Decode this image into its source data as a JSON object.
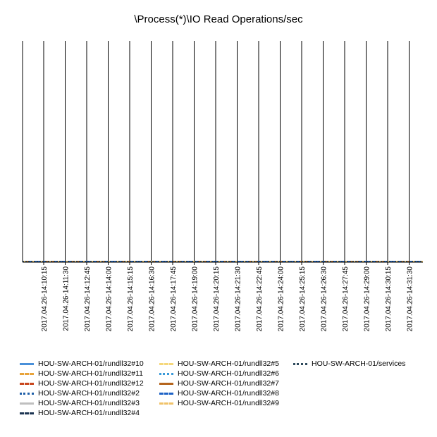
{
  "chart_data": {
    "type": "line",
    "title": "\\Process(*)\\IO Read Operations/sec",
    "xlabel": "",
    "ylabel": "",
    "grid": "vertical",
    "legend_position": "bottom",
    "x": [
      "2017.04.26-14:10:15",
      "2017.04.26-14:11:30",
      "2017.04.26-14:12:45",
      "2017.04.26-14:14:00",
      "2017.04.26-14:15:15",
      "2017.04.26-14:16:30",
      "2017.04.26-14:17:45",
      "2017.04.26-14:19:00",
      "2017.04.26-14:20:15",
      "2017.04.26-14:21:30",
      "2017.04.26-14:22:45",
      "2017.04.26-14:24:00",
      "2017.04.26-14:25:15",
      "2017.04.26-14:26:30",
      "2017.04.26-14:27:45",
      "2017.04.26-14:29:00",
      "2017.04.26-14:30:15",
      "2017.04.26-14:31:30"
    ],
    "series": [
      {
        "name": "HOU-SW-ARCH-01/rundll32#10",
        "color": "#4a90d9",
        "dash": "solid",
        "values": [
          0,
          0,
          0,
          0,
          0,
          0,
          0,
          0,
          0,
          0,
          0,
          0,
          0,
          0,
          0,
          0,
          0,
          0
        ]
      },
      {
        "name": "HOU-SW-ARCH-01/rundll32#11",
        "color": "#e8a33a",
        "dash": "dashed",
        "values": [
          0,
          0,
          0,
          0,
          0,
          0,
          0,
          0,
          0,
          0,
          0,
          0,
          0,
          0,
          0,
          0,
          0,
          0
        ]
      },
      {
        "name": "HOU-SW-ARCH-01/rundll32#12",
        "color": "#c8461e",
        "dash": "dashed",
        "values": [
          0,
          0,
          0,
          0,
          0,
          0,
          0,
          0,
          0,
          0,
          0,
          0,
          0,
          0,
          0,
          0,
          0,
          0
        ]
      },
      {
        "name": "HOU-SW-ARCH-01/rundll32#2",
        "color": "#1f5fa8",
        "dash": "dotted",
        "values": [
          0,
          0,
          0,
          0,
          0,
          0,
          0,
          0,
          0,
          0,
          0,
          0,
          0,
          0,
          0,
          0,
          0,
          0
        ]
      },
      {
        "name": "HOU-SW-ARCH-01/rundll32#3",
        "color": "#bfbfbf",
        "dash": "solid",
        "values": [
          0,
          0,
          0,
          0,
          0,
          0,
          0,
          0,
          0,
          0,
          0,
          0,
          0,
          0,
          0,
          0,
          0,
          0
        ]
      },
      {
        "name": "HOU-SW-ARCH-01/rundll32#4",
        "color": "#1c3452",
        "dash": "dashed",
        "values": [
          0,
          0,
          0,
          0,
          0,
          0,
          0,
          0,
          0,
          0,
          0,
          0,
          0,
          0,
          0,
          0,
          0,
          0
        ]
      },
      {
        "name": "HOU-SW-ARCH-01/rundll32#5",
        "color": "#f5d77a",
        "dash": "dashed",
        "values": [
          0,
          0,
          0,
          0,
          0,
          0,
          0,
          0,
          0,
          0,
          0,
          0,
          0,
          0,
          0,
          0,
          0,
          0
        ]
      },
      {
        "name": "HOU-SW-ARCH-01/rundll32#6",
        "color": "#3a9ad9",
        "dash": "dotted",
        "values": [
          0,
          0,
          0,
          0,
          0,
          0,
          0,
          0,
          0,
          0,
          0,
          0,
          0,
          0,
          0,
          0,
          0,
          0
        ]
      },
      {
        "name": "HOU-SW-ARCH-01/rundll32#7",
        "color": "#b5651d",
        "dash": "solid",
        "values": [
          0,
          0,
          0,
          0,
          0,
          0,
          0,
          0,
          0,
          0,
          0,
          0,
          0,
          0,
          0,
          0,
          0,
          0
        ]
      },
      {
        "name": "HOU-SW-ARCH-01/rundll32#8",
        "color": "#1f63c6",
        "dash": "dashed",
        "values": [
          0,
          0,
          0,
          0,
          0,
          0,
          0,
          0,
          0,
          0,
          0,
          0,
          0,
          0,
          0,
          0,
          0,
          0
        ]
      },
      {
        "name": "HOU-SW-ARCH-01/rundll32#9",
        "color": "#f0c36a",
        "dash": "dashdot",
        "values": [
          0,
          0,
          0,
          0,
          0,
          0,
          0,
          0,
          0,
          0,
          0,
          0,
          0,
          0,
          0,
          0,
          0,
          0
        ]
      },
      {
        "name": "HOU-SW-ARCH-01/services",
        "color": "#2e4a5c",
        "dash": "dotted",
        "values": [
          0,
          0,
          0,
          0,
          0,
          0,
          0,
          0,
          0,
          0,
          0,
          0,
          0,
          0,
          0,
          0,
          0,
          0
        ]
      }
    ]
  }
}
